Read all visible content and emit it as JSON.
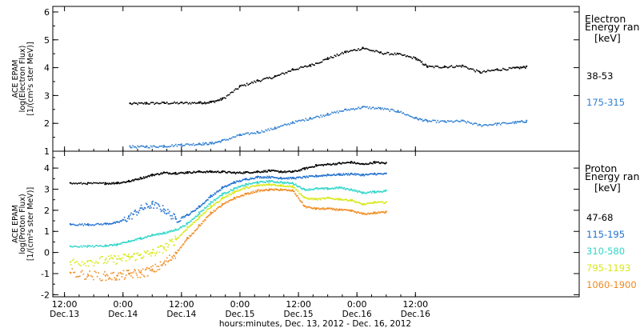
{
  "chart_data": [
    {
      "type": "scatter",
      "panel": "electron",
      "ylabel_lines": [
        "ACE EPAM",
        "log(Electron Flux)",
        "[1/(cm²s ster MeV)]"
      ],
      "legend_title_lines": [
        "Electron",
        "Energy ranges",
        "[keV]"
      ],
      "ylim": [
        1,
        6.2
      ],
      "yticks": [
        1,
        2,
        3,
        4,
        5,
        6
      ],
      "xlim": [
        -0.6,
        3.9
      ],
      "grid": false,
      "legend_position": "right",
      "series": [
        {
          "name": "38-53",
          "color": "#000000",
          "x": [
            0.06,
            0.2,
            0.35,
            0.5,
            0.65,
            0.75,
            0.85,
            1.0,
            1.15,
            1.3,
            1.45,
            1.6,
            1.75,
            1.9,
            2.05,
            2.2,
            2.35,
            2.5,
            2.6,
            2.75,
            2.9,
            3.05,
            3.2,
            3.35,
            3.45
          ],
          "y": [
            2.72,
            2.74,
            2.75,
            2.75,
            2.76,
            2.78,
            2.9,
            3.35,
            3.55,
            3.7,
            3.95,
            4.1,
            4.35,
            4.58,
            4.72,
            4.55,
            4.5,
            4.35,
            4.05,
            4.05,
            4.08,
            3.85,
            3.95,
            4.0,
            4.05
          ]
        },
        {
          "name": "175-315",
          "color": "#2e7fd2",
          "x": [
            0.06,
            0.2,
            0.35,
            0.5,
            0.65,
            0.75,
            0.85,
            1.0,
            1.15,
            1.3,
            1.45,
            1.6,
            1.75,
            1.9,
            2.05,
            2.2,
            2.35,
            2.5,
            2.6,
            2.75,
            2.9,
            3.05,
            3.2,
            3.35,
            3.45
          ],
          "y": [
            1.18,
            1.18,
            1.2,
            1.25,
            1.28,
            1.3,
            1.4,
            1.6,
            1.7,
            1.85,
            2.05,
            2.2,
            2.35,
            2.5,
            2.6,
            2.55,
            2.45,
            2.2,
            2.1,
            2.08,
            2.1,
            1.95,
            2.0,
            2.05,
            2.1
          ]
        }
      ]
    },
    {
      "type": "scatter",
      "panel": "proton",
      "ylabel_lines": [
        "ACE EPAM",
        "log(Proton Flux)",
        "[1/(cm²s ster MeV)]"
      ],
      "legend_title_lines": [
        "Proton",
        "Energy ranges",
        "[keV]"
      ],
      "ylim": [
        -2.1,
        4.8
      ],
      "yticks": [
        -2,
        -1,
        0,
        1,
        2,
        3,
        4
      ],
      "xlim": [
        -0.6,
        3.9
      ],
      "xticks": [
        {
          "x": -0.5,
          "top": "12:00",
          "bottom": "Dec.13"
        },
        {
          "x": 0.0,
          "top": "0:00",
          "bottom": "Dec.14"
        },
        {
          "x": 0.5,
          "top": "12:00",
          "bottom": "Dec.14"
        },
        {
          "x": 1.0,
          "top": "0:00",
          "bottom": "Dec.15"
        },
        {
          "x": 1.5,
          "top": "12:00",
          "bottom": "Dec.15"
        },
        {
          "x": 2.0,
          "top": "0:00",
          "bottom": "Dec.16"
        },
        {
          "x": 2.5,
          "top": "12:00",
          "bottom": "Dec.16"
        }
      ],
      "xlabel": "hours:minutes, Dec. 13, 2012 - Dec. 16, 2012",
      "grid": false,
      "legend_position": "right",
      "series": [
        {
          "name": "47-68",
          "color": "#000000",
          "x": [
            -0.45,
            -0.3,
            -0.15,
            -0.05,
            0.05,
            0.15,
            0.25,
            0.35,
            0.45,
            0.55,
            0.65,
            0.75,
            0.85,
            0.95,
            1.05,
            1.15,
            1.25,
            1.35,
            1.45,
            1.55,
            1.65,
            1.75,
            1.85,
            1.95,
            2.05,
            2.15,
            2.25
          ],
          "y": [
            3.3,
            3.3,
            3.3,
            3.32,
            3.4,
            3.55,
            3.7,
            3.8,
            3.78,
            3.82,
            3.85,
            3.85,
            3.85,
            3.8,
            3.82,
            3.85,
            3.9,
            3.85,
            3.85,
            4.0,
            4.15,
            4.2,
            4.25,
            4.3,
            4.2,
            4.3,
            4.25
          ]
        },
        {
          "name": "115-195",
          "color": "#1f6fd0",
          "x": [
            -0.45,
            -0.3,
            -0.15,
            -0.05,
            0.05,
            0.15,
            0.25,
            0.35,
            0.45,
            0.55,
            0.65,
            0.75,
            0.85,
            0.95,
            1.05,
            1.15,
            1.25,
            1.35,
            1.45,
            1.55,
            1.65,
            1.75,
            1.85,
            1.95,
            2.05,
            2.15,
            2.25
          ],
          "y": [
            1.35,
            1.35,
            1.38,
            1.45,
            1.7,
            2.1,
            2.3,
            2.05,
            1.6,
            1.8,
            2.2,
            2.7,
            3.1,
            3.35,
            3.5,
            3.6,
            3.6,
            3.55,
            3.55,
            3.6,
            3.65,
            3.7,
            3.72,
            3.75,
            3.7,
            3.75,
            3.75
          ]
        },
        {
          "name": "310-580",
          "color": "#2fd6c8",
          "x": [
            -0.45,
            -0.3,
            -0.15,
            -0.05,
            0.05,
            0.15,
            0.25,
            0.35,
            0.45,
            0.55,
            0.65,
            0.75,
            0.85,
            0.95,
            1.05,
            1.15,
            1.25,
            1.35,
            1.45,
            1.55,
            1.65,
            1.75,
            1.85,
            1.95,
            2.05,
            2.15,
            2.25
          ],
          "y": [
            0.3,
            0.32,
            0.35,
            0.4,
            0.55,
            0.7,
            0.85,
            0.95,
            1.1,
            1.4,
            1.9,
            2.4,
            2.8,
            3.05,
            3.25,
            3.35,
            3.4,
            3.35,
            3.3,
            3.0,
            3.05,
            3.05,
            3.1,
            3.0,
            2.85,
            2.9,
            2.95
          ]
        },
        {
          "name": "795-1193",
          "color": "#d8e818",
          "x": [
            -0.45,
            -0.3,
            -0.15,
            -0.05,
            0.05,
            0.15,
            0.25,
            0.35,
            0.45,
            0.55,
            0.65,
            0.75,
            0.85,
            0.95,
            1.05,
            1.15,
            1.25,
            1.35,
            1.45,
            1.55,
            1.65,
            1.75,
            1.85,
            1.95,
            2.05,
            2.15,
            2.25
          ],
          "y": [
            -0.45,
            -0.4,
            -0.35,
            -0.3,
            -0.2,
            -0.1,
            0.0,
            0.25,
            0.65,
            1.2,
            1.7,
            2.2,
            2.6,
            2.9,
            3.1,
            3.2,
            3.25,
            3.2,
            3.15,
            2.6,
            2.55,
            2.6,
            2.55,
            2.5,
            2.3,
            2.4,
            2.4
          ]
        },
        {
          "name": "1060-1900",
          "color": "#f08a20",
          "x": [
            -0.45,
            -0.3,
            -0.15,
            -0.05,
            0.05,
            0.15,
            0.25,
            0.35,
            0.45,
            0.55,
            0.65,
            0.75,
            0.85,
            0.95,
            1.05,
            1.15,
            1.25,
            1.35,
            1.45,
            1.55,
            1.65,
            1.75,
            1.85,
            1.95,
            2.05,
            2.15,
            2.25
          ],
          "y": [
            -0.95,
            -1.05,
            -1.1,
            -1.1,
            -1.0,
            -0.95,
            -0.8,
            -0.5,
            0.0,
            0.7,
            1.3,
            1.9,
            2.3,
            2.6,
            2.8,
            2.95,
            3.0,
            3.0,
            2.95,
            2.2,
            2.1,
            2.1,
            2.05,
            2.0,
            1.85,
            1.9,
            1.95
          ]
        }
      ]
    }
  ]
}
